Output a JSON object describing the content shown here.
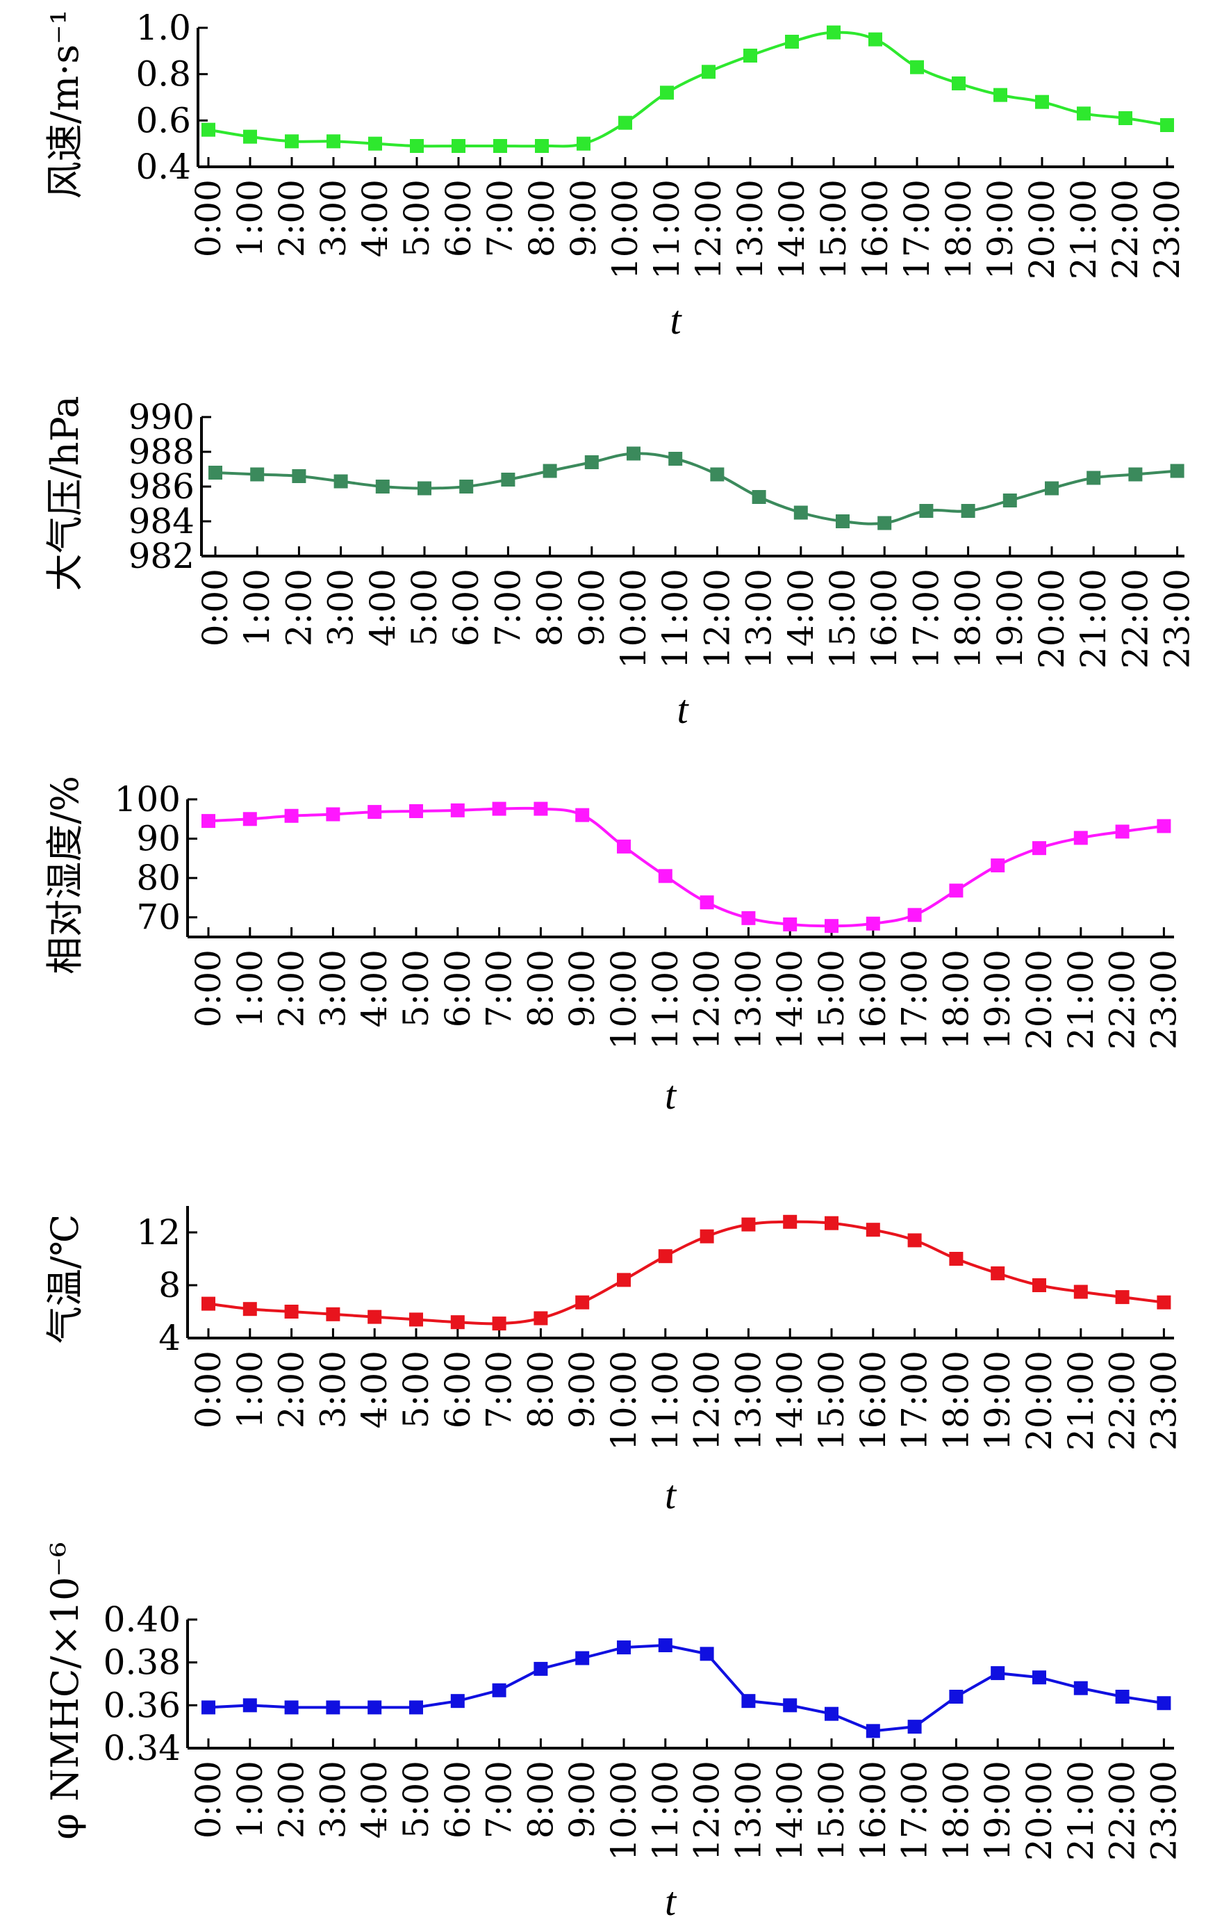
{
  "chart_data": [
    {
      "type": "line",
      "ylabel": "风速/m·s⁻¹",
      "xlabel": "t",
      "ylim": [
        0.4,
        1.0
      ],
      "yticks": [
        0.4,
        0.6,
        0.8,
        1.0
      ],
      "ytick_labels": [
        "0.4",
        "0.6",
        "0.8",
        "1.0"
      ],
      "color": "#2ee82e",
      "categories": [
        "0:00",
        "1:00",
        "2:00",
        "3:00",
        "4:00",
        "5:00",
        "6:00",
        "7:00",
        "8:00",
        "9:00",
        "10:00",
        "11:00",
        "12:00",
        "13:00",
        "14:00",
        "15:00",
        "16:00",
        "17:00",
        "18:00",
        "19:00",
        "20:00",
        "21:00",
        "22:00",
        "23:00"
      ],
      "series": [
        {
          "values": [
            0.56,
            0.53,
            0.51,
            0.51,
            0.5,
            0.49,
            0.49,
            0.49,
            0.49,
            0.5,
            0.59,
            0.72,
            0.81,
            0.88,
            0.94,
            0.98,
            0.95,
            0.83,
            0.76,
            0.71,
            0.68,
            0.63,
            0.61,
            0.58
          ]
        }
      ]
    },
    {
      "type": "line",
      "ylabel": "大气压/hPa",
      "xlabel": "t",
      "ylim": [
        982,
        990
      ],
      "yticks": [
        982,
        984,
        986,
        988,
        990
      ],
      "ytick_labels": [
        "982",
        "984",
        "986",
        "988",
        "990"
      ],
      "color": "#3b8a5c",
      "categories": [
        "0:00",
        "1:00",
        "2:00",
        "3:00",
        "4:00",
        "5:00",
        "6:00",
        "7:00",
        "8:00",
        "9:00",
        "10:00",
        "11:00",
        "12:00",
        "13:00",
        "14:00",
        "15:00",
        "16:00",
        "17:00",
        "18:00",
        "19:00",
        "20:00",
        "21:00",
        "22:00",
        "23:00"
      ],
      "series": [
        {
          "values": [
            986.8,
            986.7,
            986.6,
            986.3,
            986.0,
            985.9,
            986.0,
            986.4,
            986.9,
            987.4,
            987.9,
            987.6,
            986.7,
            985.4,
            984.5,
            984.0,
            983.9,
            984.6,
            984.6,
            985.2,
            985.9,
            986.5,
            986.7,
            986.9
          ]
        }
      ]
    },
    {
      "type": "line",
      "ylabel": "相对湿度/%",
      "xlabel": "t",
      "ylim": [
        65,
        100
      ],
      "yticks": [
        70,
        80,
        90,
        100
      ],
      "ytick_labels": [
        "70",
        "80",
        "90",
        "100"
      ],
      "color": "#ff17ff",
      "categories": [
        "0:00",
        "1:00",
        "2:00",
        "3:00",
        "4:00",
        "5:00",
        "6:00",
        "7:00",
        "8:00",
        "9:00",
        "10:00",
        "11:00",
        "12:00",
        "13:00",
        "14:00",
        "15:00",
        "16:00",
        "17:00",
        "18:00",
        "19:00",
        "20:00",
        "21:00",
        "22:00",
        "23:00"
      ],
      "series": [
        {
          "values": [
            94.5,
            95.0,
            95.8,
            96.2,
            96.8,
            97.0,
            97.2,
            97.6,
            97.6,
            96.0,
            88.0,
            80.5,
            73.8,
            69.8,
            68.2,
            67.8,
            68.4,
            70.6,
            76.8,
            83.2,
            87.6,
            90.2,
            91.8,
            93.2
          ]
        }
      ]
    },
    {
      "type": "line",
      "ylabel": "气温/℃",
      "xlabel": "t",
      "ylim": [
        4,
        14
      ],
      "yticks": [
        4,
        8,
        12
      ],
      "ytick_labels": [
        "4",
        "8",
        "12"
      ],
      "color": "#e8141d",
      "categories": [
        "0:00",
        "1:00",
        "2:00",
        "3:00",
        "4:00",
        "5:00",
        "6:00",
        "7:00",
        "8:00",
        "9:00",
        "10:00",
        "11:00",
        "12:00",
        "13:00",
        "14:00",
        "15:00",
        "16:00",
        "17:00",
        "18:00",
        "19:00",
        "20:00",
        "21:00",
        "22:00",
        "23:00"
      ],
      "series": [
        {
          "values": [
            6.6,
            6.2,
            6.0,
            5.8,
            5.6,
            5.4,
            5.2,
            5.1,
            5.5,
            6.7,
            8.4,
            10.2,
            11.7,
            12.6,
            12.8,
            12.7,
            12.2,
            11.4,
            10.0,
            8.9,
            8.0,
            7.5,
            7.1,
            6.7
          ]
        }
      ]
    },
    {
      "type": "line",
      "ylabel": "φ NMHC/×10⁻⁶",
      "xlabel": "t",
      "ylim": [
        0.34,
        0.4
      ],
      "yticks": [
        0.34,
        0.36,
        0.38,
        0.4
      ],
      "ytick_labels": [
        "0.34",
        "0.36",
        "0.38",
        "0.40"
      ],
      "color": "#1010e0",
      "categories": [
        "0:00",
        "1:00",
        "2:00",
        "3:00",
        "4:00",
        "5:00",
        "6:00",
        "7:00",
        "8:00",
        "9:00",
        "10:00",
        "11:00",
        "12:00",
        "13:00",
        "14:00",
        "15:00",
        "16:00",
        "17:00",
        "18:00",
        "19:00",
        "20:00",
        "21:00",
        "22:00",
        "23:00"
      ],
      "series": [
        {
          "values": [
            0.359,
            0.36,
            0.359,
            0.359,
            0.359,
            0.359,
            0.362,
            0.367,
            0.377,
            0.382,
            0.387,
            0.388,
            0.384,
            0.362,
            0.36,
            0.356,
            0.348,
            0.35,
            0.364,
            0.375,
            0.373,
            0.368,
            0.364,
            0.361
          ]
        }
      ]
    }
  ]
}
